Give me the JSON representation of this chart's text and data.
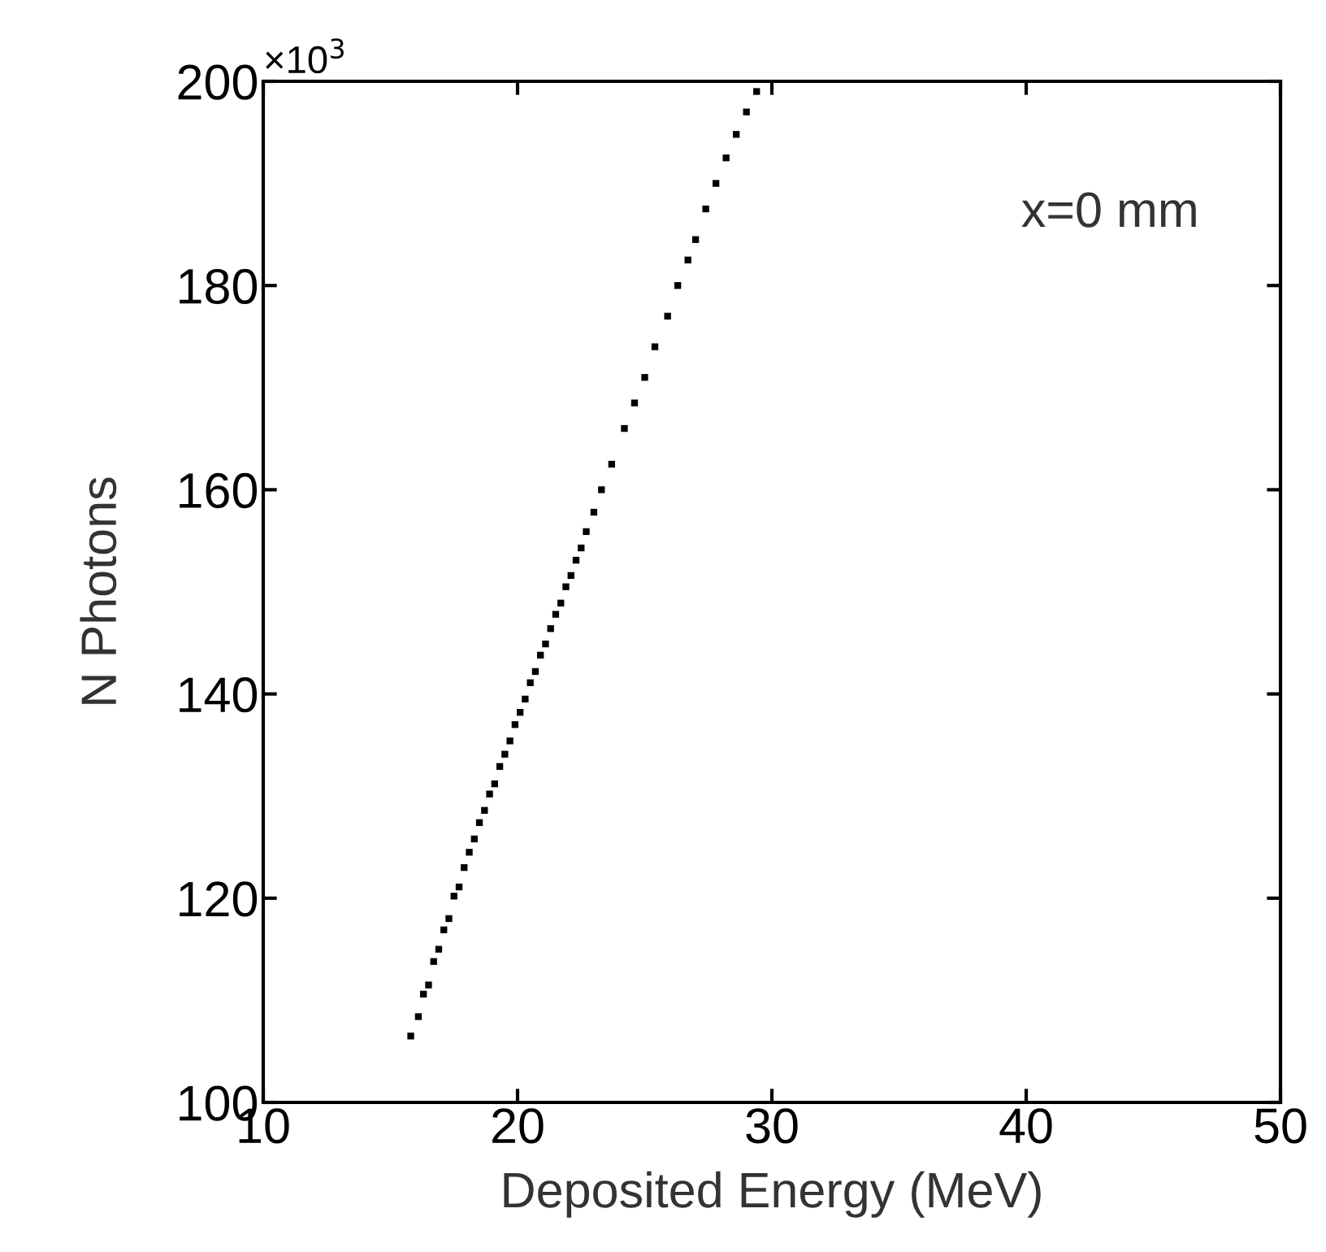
{
  "chart_data": {
    "type": "scatter",
    "xlabel": "Deposited Energy (MeV)",
    "ylabel": "N Photons",
    "annotations": [
      "x=0 mm",
      "×10$^{3}$"
    ],
    "xlim": [
      10,
      50
    ],
    "xticks": [
      10,
      20,
      30,
      40,
      50
    ],
    "ylim": [
      100,
      200
    ],
    "yticks": [
      100,
      120,
      140,
      160,
      180,
      200
    ],
    "grid": false,
    "marker": "square",
    "legend": false,
    "series": [
      {
        "color": "#000000",
        "x": [
          15.8,
          16.1,
          16.3,
          16.5,
          16.7,
          16.9,
          17.1,
          17.3,
          17.5,
          17.7,
          17.9,
          18.1,
          18.3,
          18.5,
          18.7,
          18.9,
          19.1,
          19.3,
          19.5,
          19.7,
          19.9,
          20.1,
          20.3,
          20.5,
          20.7,
          20.9,
          21.1,
          21.3,
          21.5,
          21.7,
          21.9,
          22.1,
          22.3,
          22.5,
          22.7,
          23.0,
          23.3,
          23.7,
          24.2,
          24.6,
          25.0,
          25.4,
          25.9,
          26.3,
          26.7,
          27.0,
          27.4,
          27.8,
          28.2,
          28.6,
          29.0,
          29.4
        ],
        "values": [
          106.5,
          108.4,
          110.6,
          111.5,
          113.8,
          115.0,
          116.9,
          118.0,
          120.2,
          121.1,
          123.0,
          124.5,
          125.8,
          127.4,
          128.6,
          130.2,
          131.2,
          132.9,
          134.1,
          135.4,
          137.0,
          138.2,
          139.5,
          141.1,
          142.2,
          143.8,
          144.9,
          146.4,
          147.8,
          148.9,
          150.5,
          151.6,
          153.1,
          154.3,
          155.9,
          157.8,
          160.0,
          162.5,
          166.0,
          168.5,
          171.0,
          174.0,
          177.0,
          180.0,
          182.5,
          184.5,
          187.5,
          190.0,
          192.5,
          194.8,
          197.0,
          199.0
        ]
      }
    ]
  }
}
